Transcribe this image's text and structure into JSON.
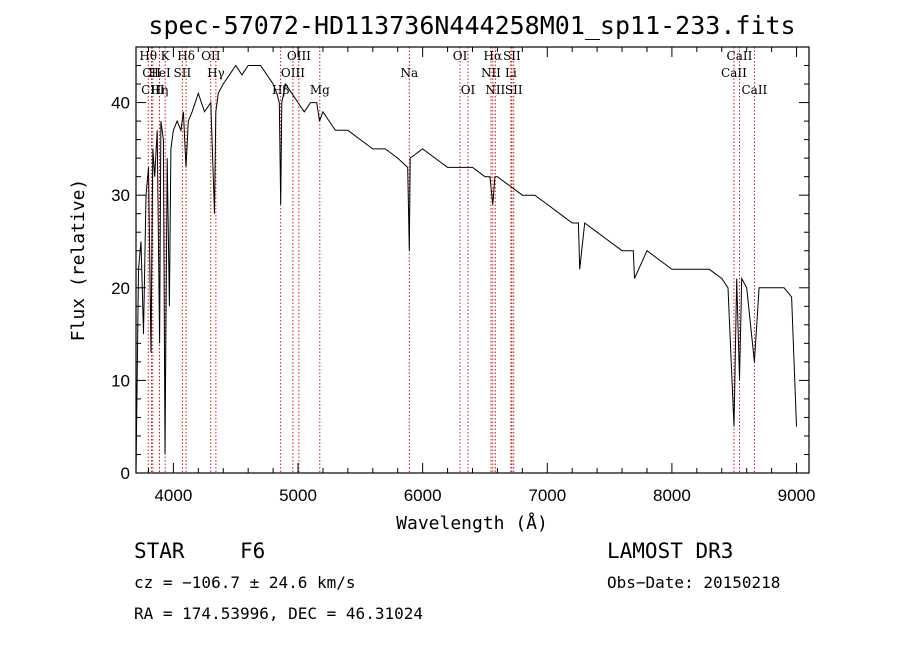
{
  "chart_data": {
    "type": "line",
    "title": "spec-57072-HD113736N444258M01_sp11-233.fits",
    "xlabel": "Wavelength (Å)",
    "ylabel": "Flux (relative)",
    "xlim": [
      3700,
      9100
    ],
    "ylim": [
      0,
      46
    ],
    "xticks": [
      4000,
      5000,
      6000,
      7000,
      8000,
      9000
    ],
    "yticks": [
      0,
      10,
      20,
      30,
      40
    ],
    "series": [
      {
        "name": "spectrum",
        "x": [
          3700,
          3720,
          3740,
          3760,
          3780,
          3800,
          3820,
          3835,
          3850,
          3870,
          3889,
          3900,
          3920,
          3933,
          3950,
          3968,
          3980,
          4000,
          4030,
          4060,
          4080,
          4101,
          4120,
          4150,
          4200,
          4250,
          4300,
          4330,
          4340,
          4360,
          4400,
          4450,
          4500,
          4550,
          4600,
          4650,
          4700,
          4750,
          4800,
          4830,
          4850,
          4861,
          4870,
          4900,
          4950,
          5000,
          5050,
          5100,
          5150,
          5172,
          5200,
          5250,
          5300,
          5400,
          5500,
          5600,
          5700,
          5800,
          5880,
          5893,
          5900,
          6000,
          6100,
          6200,
          6300,
          6400,
          6500,
          6540,
          6563,
          6580,
          6600,
          6700,
          6800,
          6900,
          7000,
          7100,
          7200,
          7250,
          7260,
          7300,
          7400,
          7500,
          7600,
          7690,
          7700,
          7800,
          7900,
          8000,
          8100,
          8200,
          8300,
          8400,
          8450,
          8498,
          8520,
          8542,
          8560,
          8600,
          8662,
          8700,
          8800,
          8900,
          8960,
          9000
        ],
        "values": [
          0,
          22,
          25,
          15,
          30,
          33,
          13,
          35,
          32,
          37,
          14,
          38,
          36,
          2,
          34,
          18,
          35,
          37,
          38,
          37,
          39,
          33,
          38,
          39,
          41,
          39,
          40,
          28,
          39,
          41,
          42,
          43,
          44,
          43,
          44,
          44,
          44,
          43,
          42,
          41,
          40,
          29,
          40,
          42,
          41,
          40,
          39,
          40,
          40,
          38,
          39,
          38,
          37,
          37,
          36,
          35,
          35,
          34,
          33,
          24,
          34,
          35,
          34,
          33,
          33,
          33,
          32,
          32,
          29,
          32,
          32,
          31,
          30,
          30,
          29,
          28,
          27,
          27,
          22,
          27,
          26,
          25,
          24,
          24,
          21,
          24,
          23,
          22,
          22,
          22,
          22,
          21,
          20,
          5,
          21,
          10,
          21,
          20,
          12,
          20,
          20,
          20,
          19,
          5
        ]
      }
    ],
    "lines": [
      {
        "label": "Hθ",
        "wl": 3798,
        "row": 0
      },
      {
        "label": "CII",
        "wl": 3825,
        "row": 1
      },
      {
        "label": "CIII",
        "wl": 3835,
        "row": 2
      },
      {
        "label": "K",
        "wl": 3934,
        "row": 0
      },
      {
        "label": "HeI",
        "wl": 3889,
        "row": 1
      },
      {
        "label": "Hη",
        "wl": 3889,
        "row": 2
      },
      {
        "label": "SII",
        "wl": 4072,
        "row": 1
      },
      {
        "label": "Hδ",
        "wl": 4102,
        "row": 0
      },
      {
        "label": "OII",
        "wl": 4300,
        "row": 0
      },
      {
        "label": "Hγ",
        "wl": 4341,
        "row": 1
      },
      {
        "label": "OIII",
        "wl": 5007,
        "row": 0
      },
      {
        "label": "OIII",
        "wl": 4959,
        "row": 1
      },
      {
        "label": "Hβ",
        "wl": 4861,
        "row": 2
      },
      {
        "label": "Mg",
        "wl": 5175,
        "row": 2
      },
      {
        "label": "Na",
        "wl": 5893,
        "row": 1
      },
      {
        "label": "OI",
        "wl": 6300,
        "row": 0
      },
      {
        "label": "OI",
        "wl": 6364,
        "row": 2
      },
      {
        "label": "Hα",
        "wl": 6563,
        "row": 0
      },
      {
        "label": "NII",
        "wl": 6548,
        "row": 1
      },
      {
        "label": "NII",
        "wl": 6583,
        "row": 2
      },
      {
        "label": "SII",
        "wl": 6716,
        "row": 0
      },
      {
        "label": "Li",
        "wl": 6708,
        "row": 1
      },
      {
        "label": "SII",
        "wl": 6731,
        "row": 2
      },
      {
        "label": "CaII",
        "wl": 8542,
        "row": 0
      },
      {
        "label": "CaII",
        "wl": 8498,
        "row": 1
      },
      {
        "label": "CaII",
        "wl": 8662,
        "row": 2
      }
    ]
  },
  "info": {
    "object_class": "STAR",
    "subclass": "F6",
    "survey": "LAMOST DR3",
    "velocity": "cz = −106.7 ± 24.6 km/s",
    "obs_date": "Obs−Date: 20150218",
    "coordinates": "RA = 174.53996, DEC =  46.31024"
  }
}
